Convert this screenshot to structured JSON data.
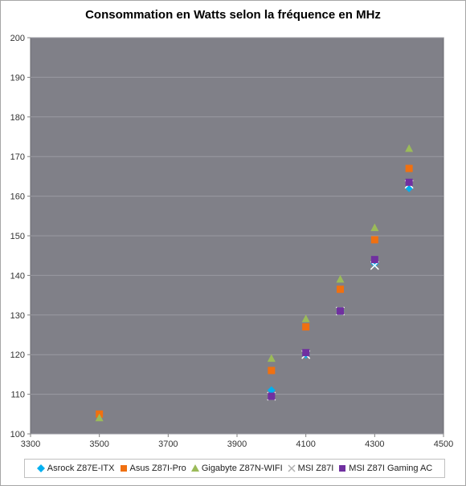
{
  "chart_data": {
    "type": "scatter",
    "title": "Consommation en Watts selon la fréquence en MHz",
    "xlabel": "",
    "ylabel": "",
    "xlim": [
      3300,
      4500
    ],
    "ylim": [
      100,
      200
    ],
    "x_ticks": [
      3300,
      3500,
      3700,
      3900,
      4100,
      4300,
      4500
    ],
    "y_ticks": [
      100,
      110,
      120,
      130,
      140,
      150,
      160,
      170,
      180,
      190,
      200
    ],
    "grid": true,
    "legend_position": "bottom",
    "plot_background": "#808088",
    "series": [
      {
        "name": "Asrock Z87E-ITX",
        "marker": "diamond",
        "color": "#00b0f0",
        "points": [
          [
            4000,
            111
          ],
          [
            4100,
            120
          ],
          [
            4200,
            131
          ],
          [
            4300,
            143
          ],
          [
            4400,
            162
          ]
        ]
      },
      {
        "name": "Asus Z87I-Pro",
        "marker": "square",
        "color": "#f07010",
        "points": [
          [
            3500,
            105
          ],
          [
            4000,
            116
          ],
          [
            4100,
            127
          ],
          [
            4200,
            136.5
          ],
          [
            4300,
            149
          ],
          [
            4400,
            167
          ]
        ]
      },
      {
        "name": "Gigabyte Z87N-WIFI",
        "marker": "triangle",
        "color": "#9bbb59",
        "points": [
          [
            3500,
            104
          ],
          [
            4000,
            119
          ],
          [
            4100,
            129
          ],
          [
            4200,
            139
          ],
          [
            4300,
            152
          ],
          [
            4400,
            172
          ]
        ]
      },
      {
        "name": "MSI Z87I",
        "marker": "x",
        "color": "#ffffff",
        "points": [
          [
            4000,
            109.5
          ],
          [
            4100,
            120
          ],
          [
            4200,
            131
          ],
          [
            4300,
            142.5
          ],
          [
            4400,
            163
          ]
        ]
      },
      {
        "name": "MSI Z87I Gaming AC",
        "marker": "square",
        "color": "#7030a0",
        "points": [
          [
            4000,
            109.5
          ],
          [
            4100,
            120.5
          ],
          [
            4200,
            131
          ],
          [
            4300,
            144
          ],
          [
            4400,
            163.5
          ]
        ]
      }
    ]
  }
}
